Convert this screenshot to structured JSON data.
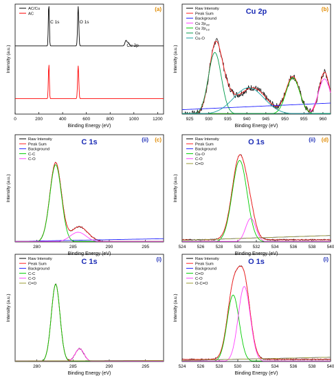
{
  "figure": {
    "background": "#ffffff"
  },
  "chart_data": [
    {
      "id": "a",
      "type": "line",
      "panel_label": "(a)",
      "xlabel": "Binding Energy (eV)",
      "ylabel": "Intensity (a.u.)",
      "xlim": [
        0,
        1250
      ],
      "xticks": [
        0,
        200,
        400,
        600,
        800,
        1000,
        1200
      ],
      "legend_position": "top-left",
      "annotations": [
        {
          "text": "C 1s",
          "x": 284
        },
        {
          "text": "O 1s",
          "x": 531
        },
        {
          "text": "Cu 2p",
          "x": 940
        }
      ],
      "series": [
        {
          "name": "AC/Cu",
          "color": "#000000",
          "baseline": 0.62,
          "peaks": [
            [
              284,
              0.42,
              4
            ],
            [
              531,
              0.36,
              5
            ],
            [
              933,
              0.05,
              8
            ],
            [
              953,
              0.03,
              8
            ]
          ]
        },
        {
          "name": "AC",
          "color": "#ff0000",
          "baseline": 0.14,
          "peaks": [
            [
              284,
              0.32,
              4
            ],
            [
              531,
              0.3,
              5
            ]
          ]
        }
      ]
    },
    {
      "id": "b",
      "type": "line",
      "title": "Cu 2p",
      "panel_label": "(b)",
      "xlabel": "Binding Energy (eV)",
      "ylabel": "Intensity (a.u.)",
      "xlim": [
        923,
        962
      ],
      "xticks": [
        925,
        930,
        935,
        940,
        945,
        950,
        955,
        960
      ],
      "legend_position": "top-left",
      "legend": [
        "Raw Intensity",
        "Peak Sum",
        "Background",
        "Cu 2p",
        "Cu 2p",
        "Cu",
        "Cu-O"
      ],
      "legend_subscripts": [
        "",
        "",
        "",
        "3/2",
        "1/2",
        "",
        ""
      ],
      "series": [
        {
          "name": "Raw Intensity",
          "color": "#000000",
          "noise": 0.03,
          "peaks": [
            [
              931.6,
              0.48,
              1.6
            ],
            [
              933.5,
              0.24,
              2.2
            ],
            [
              941.5,
              0.24,
              3.6
            ],
            [
              952.1,
              0.34,
              1.8
            ],
            [
              960.4,
              0.38,
              1.4
            ]
          ]
        },
        {
          "name": "Peak Sum",
          "color": "#ff2020",
          "peaks": [
            [
              931.6,
              0.48,
              1.6
            ],
            [
              933.5,
              0.24,
              2.2
            ],
            [
              941.5,
              0.24,
              3.6
            ],
            [
              952.1,
              0.34,
              1.8
            ],
            [
              960.4,
              0.38,
              1.4
            ]
          ]
        },
        {
          "name": "Background",
          "color": "#2020ff",
          "line": [
            [
              923,
              0.04
            ],
            [
              962,
              0.1
            ]
          ]
        },
        {
          "name": "Cu 2p3/2",
          "color": "#ff40ff",
          "peaks": [
            [
              960.4,
              0.32,
              1.6
            ]
          ]
        },
        {
          "name": "Cu 2p1/2",
          "color": "#00cc00",
          "peaks": [
            [
              952.1,
              0.33,
              1.8
            ]
          ]
        },
        {
          "name": "Cu",
          "color": "#009a4a",
          "peaks": [
            [
              931.6,
              0.56,
              1.7
            ]
          ]
        },
        {
          "name": "Cu-O",
          "color": "#1aa0a0",
          "peaks": [
            [
              940.5,
              0.24,
              4
            ]
          ]
        }
      ]
    },
    {
      "id": "c-ii",
      "type": "line",
      "title": "C 1s",
      "panel_label": "(ii)",
      "panel_label_secondary": "(c)",
      "xlabel": "Binding Energy (eV)",
      "ylabel": "Intensity (a.u.)",
      "xlim": [
        277,
        297.5
      ],
      "xticks": [
        280,
        285,
        290,
        295
      ],
      "legend_position": "top-left",
      "series": [
        {
          "name": "Raw Intensity",
          "color": "#000000",
          "noise": 0.006,
          "peaks": [
            [
              282.6,
              0.74,
              0.8
            ],
            [
              285.6,
              0.08,
              1.0
            ],
            [
              286.3,
              0.07,
              1.2
            ]
          ]
        },
        {
          "name": "Peak Sum",
          "color": "#ff2020",
          "peaks": [
            [
              282.6,
              0.74,
              0.8
            ],
            [
              285.6,
              0.08,
              1.0
            ],
            [
              286.3,
              0.07,
              1.2
            ]
          ]
        },
        {
          "name": "Background",
          "color": "#2020ff",
          "line": [
            [
              277,
              0.005
            ],
            [
              297.5,
              0.03
            ]
          ]
        },
        {
          "name": "C-C",
          "color": "#00cc00",
          "peaks": [
            [
              282.6,
              0.72,
              0.8
            ]
          ]
        },
        {
          "name": "C-O",
          "color": "#ff40ff",
          "peaks": [
            [
              285.7,
              0.09,
              1.1
            ]
          ]
        }
      ]
    },
    {
      "id": "d-ii",
      "type": "line",
      "title": "O 1s",
      "panel_label": "(ii)",
      "panel_label_secondary": "(d)",
      "xlabel": "Binding Energy (eV)",
      "ylabel": "Intensity (a.u.)",
      "xlim": [
        524,
        540
      ],
      "xticks": [
        524,
        526,
        528,
        530,
        532,
        534,
        536,
        538,
        540
      ],
      "legend_position": "top-left",
      "series": [
        {
          "name": "Raw Intensity",
          "color": "#000000",
          "noise": 0.006,
          "peaks": [
            [
              530.2,
              0.78,
              0.8
            ],
            [
              531.4,
              0.14,
              0.55
            ]
          ],
          "base": 0.02
        },
        {
          "name": "Peak Sum",
          "color": "#ff2020",
          "peaks": [
            [
              530.2,
              0.78,
              0.8
            ],
            [
              531.4,
              0.14,
              0.55
            ]
          ],
          "base": 0.02
        },
        {
          "name": "Background",
          "color": "#2020ff",
          "line": [
            [
              524,
              0.015
            ],
            [
              540,
              0.06
            ]
          ]
        },
        {
          "name": "Cu-O",
          "color": "#00cc00",
          "peaks": [
            [
              530.2,
              0.76,
              0.8
            ]
          ]
        },
        {
          "name": "C-O",
          "color": "#ff40ff",
          "peaks": [
            [
              531.4,
              0.22,
              0.55
            ]
          ]
        },
        {
          "name": "C=O",
          "color": "#999933",
          "line": [
            [
              524,
              0.015
            ],
            [
              540,
              0.06
            ]
          ]
        }
      ]
    },
    {
      "id": "c-i",
      "type": "line",
      "title": "C 1s",
      "panel_label": "(i)",
      "xlabel": "Binding Energy (eV)",
      "ylabel": "Intensity (a.u.)",
      "xlim": [
        277,
        297.5
      ],
      "xticks": [
        280,
        285,
        290,
        295
      ],
      "legend_position": "top-left",
      "series": [
        {
          "name": "Raw Intensity",
          "color": "#000000",
          "noise": 0.006,
          "peaks": [
            [
              282.6,
              0.72,
              0.6
            ],
            [
              285.9,
              0.12,
              0.6
            ]
          ]
        },
        {
          "name": "Peak Sum",
          "color": "#ff2020",
          "peaks": [
            [
              282.6,
              0.72,
              0.6
            ],
            [
              285.9,
              0.12,
              0.6
            ]
          ]
        },
        {
          "name": "Background",
          "color": "#2020ff",
          "line": [
            [
              277,
              0.005
            ],
            [
              297.5,
              0.01
            ]
          ]
        },
        {
          "name": "C-C",
          "color": "#00cc00",
          "peaks": [
            [
              282.6,
              0.72,
              0.6
            ]
          ]
        },
        {
          "name": "C-O",
          "color": "#ff40ff",
          "peaks": [
            [
              285.9,
              0.12,
              0.6
            ]
          ]
        },
        {
          "name": "C=O",
          "color": "#999933",
          "line": [
            [
              277,
              0.005
            ],
            [
              297.5,
              0.01
            ]
          ]
        }
      ]
    },
    {
      "id": "d-i",
      "type": "line",
      "title": "O 1s",
      "panel_label": "(i)",
      "xlabel": "Binding Energy (eV)",
      "ylabel": "Intensity (a.u.)",
      "xlim": [
        524,
        540
      ],
      "xticks": [
        524,
        526,
        528,
        530,
        532,
        534,
        536,
        538,
        540
      ],
      "legend_position": "top-left",
      "series": [
        {
          "name": "Raw Intensity",
          "color": "#000000",
          "noise": 0.006,
          "peaks": [
            [
              529.5,
              0.62,
              0.65
            ],
            [
              530.7,
              0.7,
              0.65
            ]
          ],
          "base": 0.02
        },
        {
          "name": "Peak Sum",
          "color": "#ff2020",
          "peaks": [
            [
              529.5,
              0.62,
              0.65
            ],
            [
              530.7,
              0.7,
              0.65
            ]
          ],
          "base": 0.02
        },
        {
          "name": "Background",
          "color": "#2020ff",
          "line": [
            [
              524,
              0.01
            ],
            [
              540,
              0.04
            ]
          ]
        },
        {
          "name": "C=O",
          "color": "#00cc00",
          "peaks": [
            [
              529.5,
              0.62,
              0.65
            ]
          ]
        },
        {
          "name": "C-O",
          "color": "#ff40ff",
          "peaks": [
            [
              530.7,
              0.7,
              0.65
            ]
          ]
        },
        {
          "name": "O-C=O",
          "color": "#999933",
          "line": [
            [
              524,
              0.01
            ],
            [
              540,
              0.04
            ]
          ]
        }
      ]
    }
  ]
}
